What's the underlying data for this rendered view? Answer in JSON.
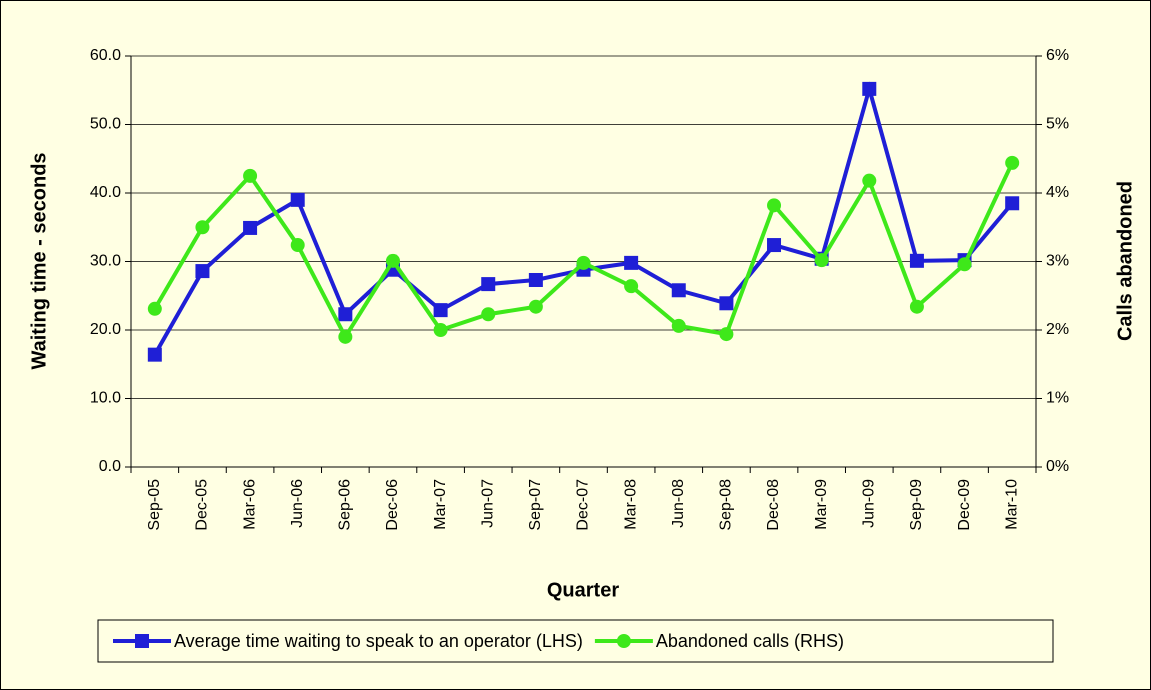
{
  "chart_data": {
    "type": "line",
    "categories": [
      "Sep-05",
      "Dec-05",
      "Mar-06",
      "Jun-06",
      "Sep-06",
      "Dec-06",
      "Mar-07",
      "Jun-07",
      "Sep-07",
      "Dec-07",
      "Mar-08",
      "Jun-08",
      "Sep-08",
      "Dec-08",
      "Mar-09",
      "Jun-09",
      "Sep-09",
      "Dec-09",
      "Mar-10"
    ],
    "series": [
      {
        "name": "Average time waiting to speak to an operator (LHS)",
        "color": "#1f1fd6",
        "marker": "square",
        "values": [
          16.4,
          28.6,
          34.9,
          39.0,
          22.3,
          28.8,
          22.9,
          26.7,
          27.3,
          28.8,
          29.8,
          25.8,
          23.9,
          32.4,
          30.4,
          55.2,
          30.1,
          30.2,
          38.5
        ]
      },
      {
        "name": "Abandoned calls (RHS)",
        "color": "#3ee81a",
        "marker": "circle",
        "axis": "y2",
        "values": [
          2.31,
          3.5,
          4.25,
          3.24,
          1.9,
          3.01,
          2.0,
          2.23,
          2.34,
          2.98,
          2.64,
          2.06,
          1.94,
          3.82,
          3.02,
          4.18,
          2.34,
          2.96,
          4.44
        ]
      }
    ],
    "xlabel": "Quarter",
    "ylabel": "Waiting time - seconds",
    "y2label": "Calls abandoned",
    "ylim": [
      0,
      60
    ],
    "yticks": [
      {
        "value": 0,
        "label": "0.0"
      },
      {
        "value": 10,
        "label": "10.0"
      },
      {
        "value": 20,
        "label": "20.0"
      },
      {
        "value": 30,
        "label": "30.0"
      },
      {
        "value": 40,
        "label": "40.0"
      },
      {
        "value": 50,
        "label": "50.0"
      },
      {
        "value": 60,
        "label": "60.0"
      }
    ],
    "y2lim": [
      0,
      6
    ],
    "y2ticks": [
      {
        "value": 0,
        "label": "0%"
      },
      {
        "value": 1,
        "label": "1%"
      },
      {
        "value": 2,
        "label": "2%"
      },
      {
        "value": 3,
        "label": "3%"
      },
      {
        "value": 4,
        "label": "4%"
      },
      {
        "value": 5,
        "label": "5%"
      },
      {
        "value": 6,
        "label": "6%"
      }
    ],
    "grid": true,
    "legend": "bottom"
  }
}
